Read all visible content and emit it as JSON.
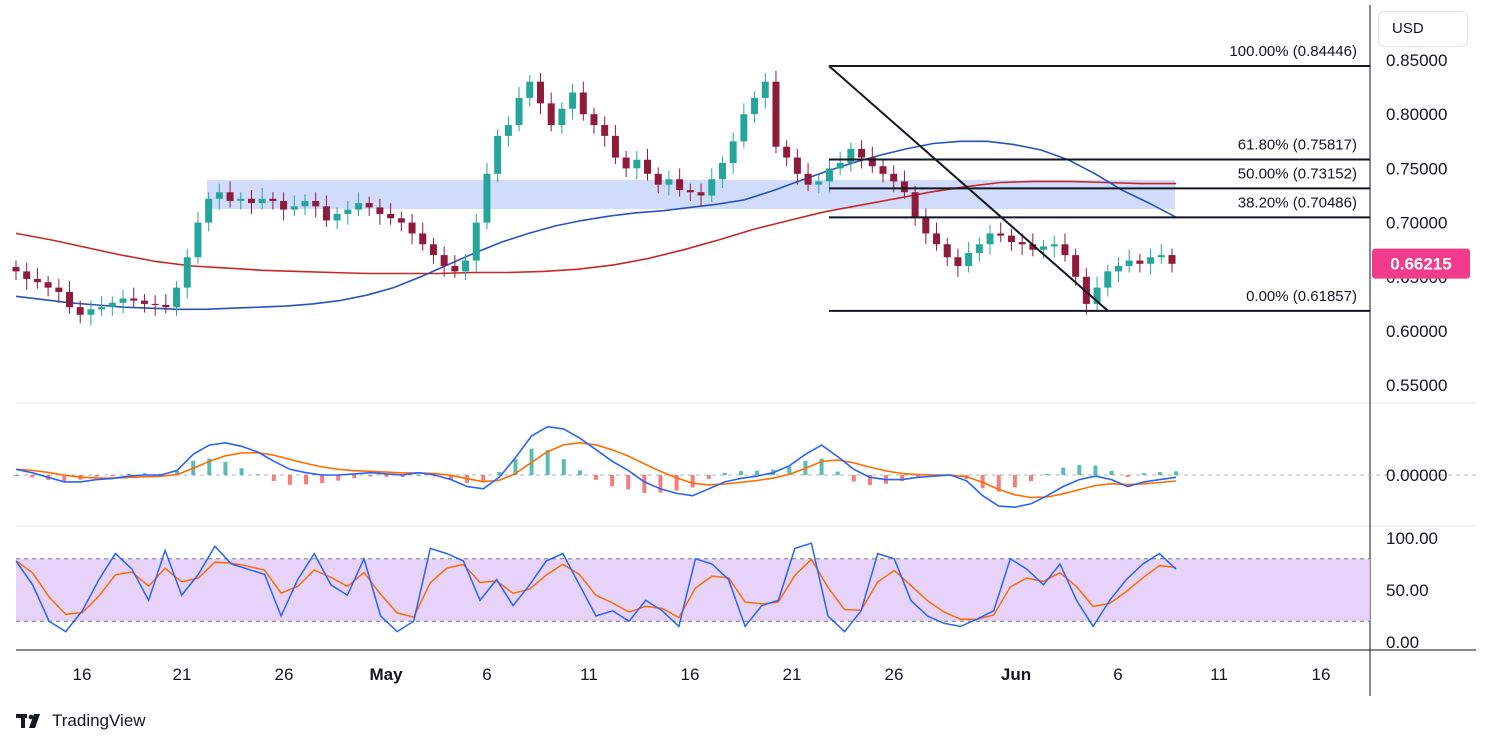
{
  "currency_label": "USD",
  "brand_name": "TradingView",
  "price_panel": {
    "y_ticks": [
      "0.85000",
      "0.80000",
      "0.75000",
      "0.70000",
      "0.65000",
      "0.60000",
      "0.55000"
    ],
    "y_tick_values": [
      0.85,
      0.8,
      0.75,
      0.7,
      0.65,
      0.6,
      0.55
    ],
    "current_price_label": "0.66215",
    "current_price_color": "#f23c8b",
    "supply_zone_color": "#c5d3fb",
    "ma_fast_color": "#2a52be",
    "ma_slow_color": "#c62828",
    "candle_up_color": "#26a69a",
    "candle_down_color": "#8e1a3c"
  },
  "fibonacci_levels": [
    {
      "label": "100.00% (0.84446)",
      "value": 0.84446
    },
    {
      "label": "61.80% (0.75817)",
      "value": 0.75817
    },
    {
      "label": "50.00% (0.73152)",
      "value": 0.73152
    },
    {
      "label": "38.20% (0.70486)",
      "value": 0.70486
    },
    {
      "label": "0.00% (0.61857)",
      "value": 0.61857
    }
  ],
  "macd_panel": {
    "zero_label": "0.00000",
    "macd_color": "#2962ff",
    "signal_color": "#ff6d00",
    "hist_up_color": "#26a69a",
    "hist_down_color": "#ef5350"
  },
  "rsi_panel": {
    "ticks": [
      "100.00",
      "50.00",
      "0.00"
    ],
    "band_color": "#e1c8f7",
    "rsi_color": "#2962ff",
    "signal_color": "#ff6d00"
  },
  "x_axis": {
    "labels": [
      "16",
      "21",
      "26",
      "May",
      "6",
      "11",
      "16",
      "21",
      "26",
      "Jun",
      "6",
      "11",
      "16"
    ]
  },
  "chart_data": {
    "type": "candlestick",
    "xlabel": "",
    "ylabel": "",
    "currency": "USD",
    "x_labels": [
      "16",
      "21",
      "26",
      "May",
      "6",
      "11",
      "16",
      "21",
      "26",
      "Jun",
      "6",
      "11",
      "16"
    ],
    "price_close": [
      0.655,
      0.648,
      0.645,
      0.64,
      0.636,
      0.622,
      0.615,
      0.62,
      0.622,
      0.626,
      0.63,
      0.628,
      0.625,
      0.624,
      0.622,
      0.64,
      0.668,
      0.7,
      0.722,
      0.728,
      0.72,
      0.722,
      0.718,
      0.722,
      0.72,
      0.712,
      0.715,
      0.72,
      0.715,
      0.702,
      0.708,
      0.712,
      0.718,
      0.714,
      0.708,
      0.704,
      0.7,
      0.69,
      0.68,
      0.67,
      0.66,
      0.655,
      0.665,
      0.7,
      0.745,
      0.78,
      0.79,
      0.815,
      0.83,
      0.81,
      0.79,
      0.805,
      0.82,
      0.8,
      0.79,
      0.78,
      0.76,
      0.75,
      0.758,
      0.745,
      0.735,
      0.74,
      0.73,
      0.728,
      0.725,
      0.74,
      0.755,
      0.775,
      0.8,
      0.815,
      0.83,
      0.77,
      0.76,
      0.745,
      0.735,
      0.738,
      0.75,
      0.755,
      0.768,
      0.76,
      0.752,
      0.745,
      0.738,
      0.728,
      0.705,
      0.69,
      0.68,
      0.668,
      0.66,
      0.672,
      0.68,
      0.69,
      0.688,
      0.682,
      0.68,
      0.675,
      0.678,
      0.68,
      0.67,
      0.65,
      0.625,
      0.64,
      0.655,
      0.66,
      0.665,
      0.662,
      0.668,
      0.67,
      0.662
    ],
    "ma_fast": [
      0.632,
      0.629,
      0.626,
      0.624,
      0.622,
      0.621,
      0.62,
      0.62,
      0.621,
      0.622,
      0.623,
      0.625,
      0.628,
      0.633,
      0.64,
      0.65,
      0.661,
      0.672,
      0.682,
      0.69,
      0.697,
      0.702,
      0.706,
      0.709,
      0.711,
      0.714,
      0.717,
      0.721,
      0.729,
      0.738,
      0.747,
      0.755,
      0.762,
      0.768,
      0.773,
      0.775,
      0.775,
      0.772,
      0.767,
      0.758,
      0.745,
      0.73,
      0.718,
      0.705
    ],
    "ma_slow": [
      0.69,
      0.684,
      0.677,
      0.67,
      0.664,
      0.66,
      0.658,
      0.656,
      0.655,
      0.654,
      0.653,
      0.653,
      0.653,
      0.654,
      0.654,
      0.655,
      0.657,
      0.661,
      0.667,
      0.675,
      0.684,
      0.694,
      0.702,
      0.71,
      0.716,
      0.722,
      0.728,
      0.733,
      0.737,
      0.738,
      0.738,
      0.737,
      0.736,
      0.736
    ],
    "fibonacci": [
      {
        "level": "100.00%",
        "value": 0.84446
      },
      {
        "level": "61.80%",
        "value": 0.75817
      },
      {
        "level": "50.00%",
        "value": 0.73152
      },
      {
        "level": "38.20%",
        "value": 0.70486
      },
      {
        "level": "0.00%",
        "value": 0.61857
      }
    ],
    "current_price": 0.66215,
    "macd": [
      0.005,
      0.002,
      -0.002,
      -0.006,
      -0.006,
      -0.004,
      -0.003,
      -0.001,
      0.0,
      0.0,
      0.004,
      0.018,
      0.026,
      0.028,
      0.025,
      0.02,
      0.012,
      0.005,
      0.002,
      0.0,
      0.0,
      0.001,
      0.002,
      0.001,
      0.0,
      0.002,
      0.0,
      -0.004,
      -0.01,
      -0.012,
      -0.002,
      0.015,
      0.034,
      0.042,
      0.04,
      0.032,
      0.022,
      0.012,
      0.004,
      -0.006,
      -0.012,
      -0.016,
      -0.018,
      -0.012,
      -0.006,
      -0.003,
      -0.001,
      0.002,
      0.008,
      0.018,
      0.026,
      0.016,
      0.005,
      -0.002,
      -0.004,
      -0.004,
      -0.002,
      -0.001,
      0.0,
      -0.005,
      -0.018,
      -0.027,
      -0.028,
      -0.025,
      -0.018,
      -0.01,
      -0.004,
      -0.001,
      -0.004,
      -0.01,
      -0.006,
      -0.004,
      -0.002
    ],
    "rsi": [
      78,
      55,
      20,
      10,
      30,
      60,
      85,
      70,
      40,
      88,
      45,
      65,
      92,
      75,
      70,
      65,
      25,
      60,
      85,
      55,
      45,
      80,
      25,
      10,
      20,
      90,
      85,
      78,
      40,
      60,
      35,
      55,
      78,
      85,
      55,
      25,
      30,
      20,
      40,
      30,
      15,
      80,
      75,
      60,
      15,
      35,
      40,
      90,
      95,
      25,
      10,
      30,
      85,
      80,
      40,
      25,
      18,
      15,
      22,
      30,
      80,
      70,
      55,
      75,
      40,
      15,
      40,
      60,
      75,
      85,
      70
    ]
  }
}
